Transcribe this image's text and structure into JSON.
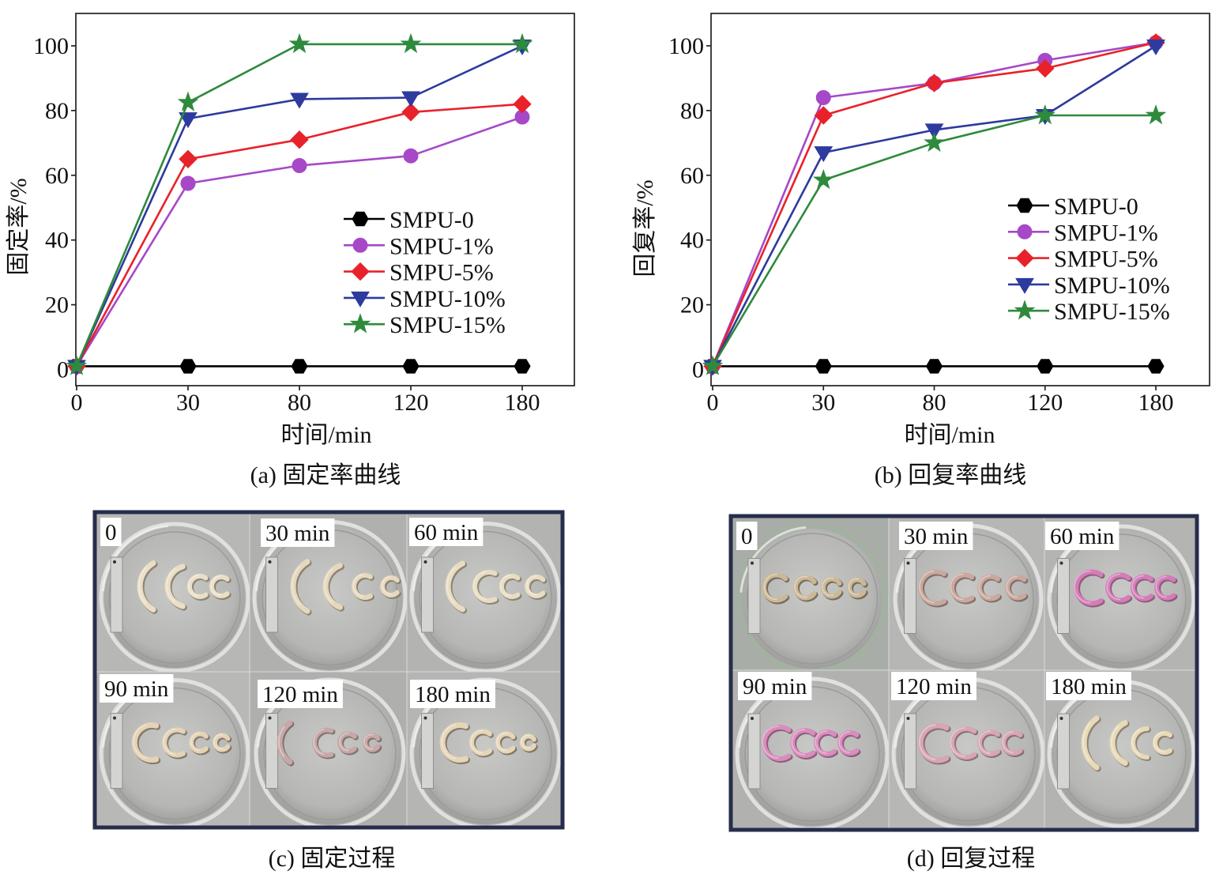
{
  "chart_data": [
    {
      "type": "line",
      "caption": "(a) 固定率曲线",
      "xlabel": "时间/min",
      "ylabel": "固定率/%",
      "categories": [
        "0",
        "30",
        "80",
        "120",
        "180"
      ],
      "yticks": [
        0,
        20,
        40,
        60,
        80,
        100
      ],
      "ylim": [
        -5,
        110
      ],
      "grid": false,
      "legend": "center-right",
      "series": [
        {
          "name": "SMPU-0",
          "color": "#000000",
          "marker": "hexagon",
          "values": [
            1,
            1,
            1,
            1,
            1
          ]
        },
        {
          "name": "SMPU-1%",
          "color": "#a648c8",
          "marker": "circle",
          "values": [
            1,
            57.5,
            63,
            66,
            78
          ]
        },
        {
          "name": "SMPU-5%",
          "color": "#e8222a",
          "marker": "diamond",
          "values": [
            1,
            65,
            71,
            79.5,
            82
          ]
        },
        {
          "name": "SMPU-10%",
          "color": "#2d3a9e",
          "marker": "triangle-down",
          "values": [
            1,
            77.5,
            83.5,
            84,
            100
          ]
        },
        {
          "name": "SMPU-15%",
          "color": "#2e8a3c",
          "marker": "star",
          "values": [
            1,
            82.5,
            100.5,
            100.5,
            100.5
          ]
        }
      ]
    },
    {
      "type": "line",
      "caption": "(b) 回复率曲线",
      "xlabel": "时间/min",
      "ylabel": "回复率/%",
      "categories": [
        "0",
        "30",
        "80",
        "120",
        "180"
      ],
      "yticks": [
        0,
        20,
        40,
        60,
        80,
        100
      ],
      "ylim": [
        -5,
        110
      ],
      "grid": false,
      "legend": "center-right",
      "series": [
        {
          "name": "SMPU-0",
          "color": "#000000",
          "marker": "hexagon",
          "values": [
            1,
            1,
            1,
            1,
            1
          ]
        },
        {
          "name": "SMPU-1%",
          "color": "#a648c8",
          "marker": "circle",
          "values": [
            1,
            84,
            88.5,
            95.5,
            101
          ]
        },
        {
          "name": "SMPU-5%",
          "color": "#e8222a",
          "marker": "diamond",
          "values": [
            1,
            78.5,
            88.5,
            93,
            101
          ]
        },
        {
          "name": "SMPU-10%",
          "color": "#2d3a9e",
          "marker": "triangle-down",
          "values": [
            1,
            67,
            74,
            78.5,
            100
          ]
        },
        {
          "name": "SMPU-15%",
          "color": "#2e8a3c",
          "marker": "star",
          "values": [
            1,
            58.5,
            70,
            78.5,
            78.5
          ]
        }
      ]
    }
  ],
  "photo_panels": [
    {
      "caption": "(c) 固定过程",
      "labels": [
        "0",
        "30 min",
        "60 min",
        "90 min",
        "120 min",
        "180 min"
      ]
    },
    {
      "caption": "(d) 回复过程",
      "labels": [
        "0",
        "30 min",
        "60 min",
        "90 min",
        "120 min",
        "180 min"
      ]
    }
  ]
}
